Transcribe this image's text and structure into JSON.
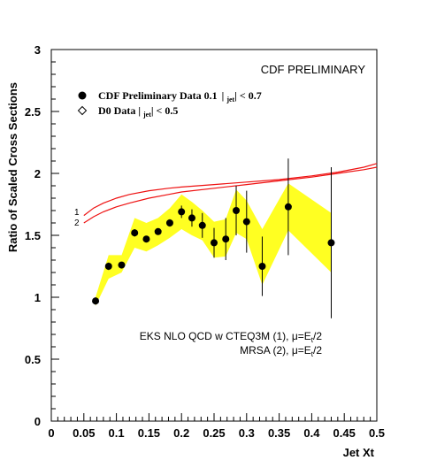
{
  "chart_data": {
    "type": "scatter",
    "title": "CDF PRELIMINARY",
    "xlabel": "Jet Xt",
    "ylabel": "Ratio of Scaled Cross Sections",
    "xlim": [
      0,
      0.5
    ],
    "ylim": [
      0,
      3
    ],
    "grid": false,
    "legend_position": "top-left",
    "x_ticks": [
      {
        "value": 0,
        "label": "0"
      },
      {
        "value": 0.05,
        "label": "0.05"
      },
      {
        "value": 0.1,
        "label": "0.1"
      },
      {
        "value": 0.15,
        "label": "0.15"
      },
      {
        "value": 0.2,
        "label": "0.2"
      },
      {
        "value": 0.25,
        "label": "0.25"
      },
      {
        "value": 0.3,
        "label": "0.3"
      },
      {
        "value": 0.35,
        "label": "0.35"
      },
      {
        "value": 0.4,
        "label": "0.4"
      },
      {
        "value": 0.45,
        "label": "0.45"
      },
      {
        "value": 0.5,
        "label": "0.5"
      }
    ],
    "y_ticks": [
      {
        "value": 0,
        "label": "0"
      },
      {
        "value": 0.5,
        "label": "0.5"
      },
      {
        "value": 1,
        "label": "1"
      },
      {
        "value": 1.5,
        "label": "1.5"
      },
      {
        "value": 2,
        "label": "2"
      },
      {
        "value": 2.5,
        "label": "2.5"
      },
      {
        "value": 3,
        "label": "3"
      }
    ],
    "legend": [
      {
        "marker": "filled-circle",
        "prefix": "CDF Preliminary Data 0.1",
        "sub": "jet",
        "suffix": "< 0.7"
      },
      {
        "marker": "open-diamond",
        "prefix": "D0 Data",
        "sub": "jet",
        "suffix": "< 0.5"
      }
    ],
    "annotations": {
      "line1_prefix": "EKS NLO QCD w CTEQ3M (1), ",
      "line2_prefix": "MRSA (2), ",
      "mu_expr": "μ=E",
      "mu_sub": "t",
      "mu_suffix": "/2",
      "curve_label_1": "1",
      "curve_label_2": "2"
    },
    "series": [
      {
        "name": "CDF Preliminary Data",
        "marker": "filled-circle",
        "color": "#000000",
        "points": [
          {
            "x": 0.068,
            "y": 0.97,
            "err": 0.03
          },
          {
            "x": 0.088,
            "y": 1.25,
            "err": 0.03
          },
          {
            "x": 0.108,
            "y": 1.26,
            "err": 0.025
          },
          {
            "x": 0.128,
            "y": 1.52,
            "err": 0.03
          },
          {
            "x": 0.146,
            "y": 1.47,
            "err": 0.02
          },
          {
            "x": 0.164,
            "y": 1.53,
            "err": 0.02
          },
          {
            "x": 0.182,
            "y": 1.6,
            "err": 0.03
          },
          {
            "x": 0.2,
            "y": 1.69,
            "err": 0.05
          },
          {
            "x": 0.216,
            "y": 1.64,
            "err": 0.07
          },
          {
            "x": 0.232,
            "y": 1.58,
            "err": 0.1
          },
          {
            "x": 0.25,
            "y": 1.44,
            "err": 0.12
          },
          {
            "x": 0.268,
            "y": 1.47,
            "err": 0.17
          },
          {
            "x": 0.284,
            "y": 1.7,
            "err": 0.2
          },
          {
            "x": 0.3,
            "y": 1.61,
            "err": 0.25
          },
          {
            "x": 0.324,
            "y": 1.25,
            "err": 0.24
          },
          {
            "x": 0.364,
            "y": 1.73,
            "err": 0.39
          },
          {
            "x": 0.43,
            "y": 1.44,
            "err": 0.61
          }
        ]
      }
    ],
    "band": {
      "name": "D0 Data",
      "color": "#ffff22",
      "x": [
        0.068,
        0.088,
        0.108,
        0.128,
        0.146,
        0.164,
        0.182,
        0.2,
        0.216,
        0.232,
        0.25,
        0.268,
        0.284,
        0.3,
        0.324,
        0.364,
        0.43
      ],
      "upper": [
        1.0,
        1.34,
        1.34,
        1.64,
        1.6,
        1.64,
        1.72,
        1.83,
        1.77,
        1.7,
        1.61,
        1.63,
        1.87,
        1.78,
        1.55,
        1.92,
        1.68
      ],
      "lower": [
        0.93,
        1.15,
        1.2,
        1.4,
        1.37,
        1.42,
        1.48,
        1.55,
        1.5,
        1.46,
        1.32,
        1.33,
        1.52,
        1.47,
        1.1,
        1.54,
        1.2
      ]
    },
    "curves": [
      {
        "name": "1",
        "color": "#ee1111",
        "x": [
          0.05,
          0.065,
          0.08,
          0.1,
          0.12,
          0.15,
          0.18,
          0.2,
          0.25,
          0.3,
          0.35,
          0.4,
          0.44,
          0.48,
          0.5
        ],
        "y": [
          1.66,
          1.72,
          1.76,
          1.8,
          1.83,
          1.86,
          1.88,
          1.89,
          1.91,
          1.93,
          1.95,
          1.98,
          2.01,
          2.05,
          2.08
        ]
      },
      {
        "name": "2",
        "color": "#ee1111",
        "x": [
          0.05,
          0.065,
          0.08,
          0.1,
          0.12,
          0.15,
          0.18,
          0.2,
          0.25,
          0.3,
          0.35,
          0.4,
          0.44,
          0.48,
          0.5
        ],
        "y": [
          1.6,
          1.65,
          1.69,
          1.73,
          1.76,
          1.8,
          1.83,
          1.85,
          1.88,
          1.91,
          1.94,
          1.97,
          2.0,
          2.03,
          2.05
        ]
      }
    ]
  }
}
